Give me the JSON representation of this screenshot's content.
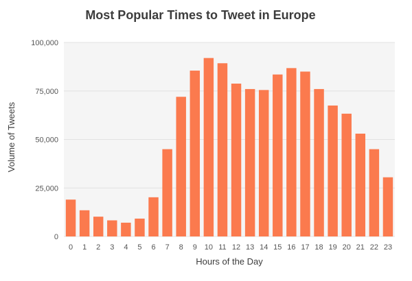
{
  "chart_data": {
    "type": "bar",
    "title": "Most Popular Times to Tweet in Europe",
    "xlabel": "Hours of the Day",
    "ylabel": "Volume of Tweets",
    "categories": [
      "0",
      "1",
      "2",
      "3",
      "4",
      "5",
      "6",
      "7",
      "8",
      "9",
      "10",
      "11",
      "12",
      "13",
      "14",
      "15",
      "16",
      "17",
      "18",
      "19",
      "20",
      "21",
      "22",
      "23"
    ],
    "values": [
      19000,
      13500,
      10200,
      8300,
      7100,
      9200,
      20200,
      45000,
      72000,
      85500,
      92000,
      89300,
      78800,
      76000,
      75500,
      83500,
      86800,
      85000,
      76000,
      67500,
      63300,
      53000,
      45000,
      30500
    ],
    "ylim": [
      0,
      100000
    ],
    "yticks": [
      0,
      25000,
      50000,
      75000,
      100000
    ],
    "ytick_labels": [
      "0",
      "25,000",
      "50,000",
      "75,000",
      "100,000"
    ],
    "grid": true,
    "colors": {
      "bar": "#fb7a4e",
      "plot_background": "#f5f5f5",
      "text": "#3c3c3c"
    }
  }
}
